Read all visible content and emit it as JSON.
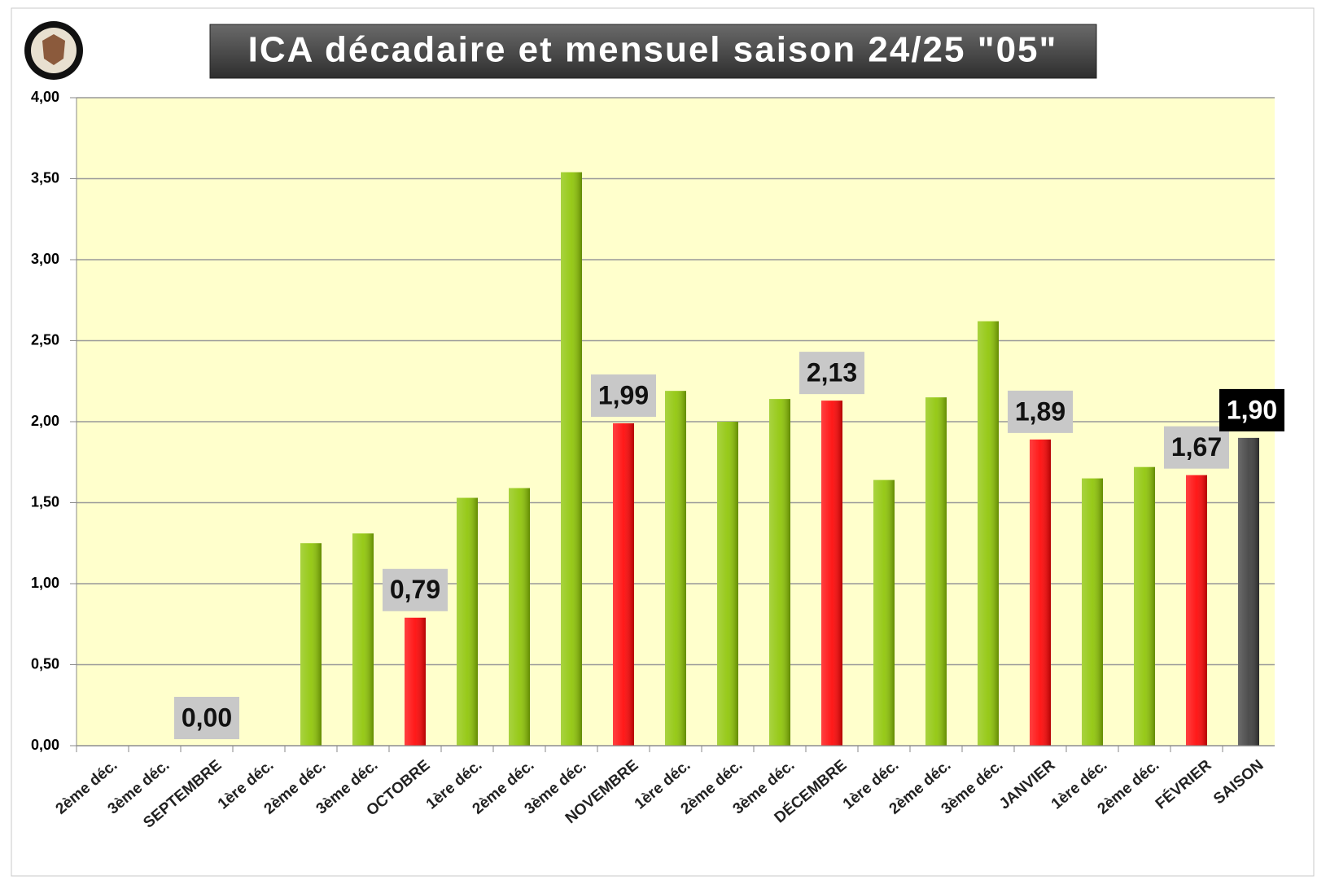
{
  "chart_data": {
    "type": "bar",
    "title": "ICA décadaire et mensuel saison 24/25 \"05\"",
    "categories": [
      "2ème déc.",
      "3ème déc.",
      "SEPTEMBRE",
      "1ère déc.",
      "2ème déc.",
      "3ème déc.",
      "OCTOBRE",
      "1ère déc.",
      "2ème déc.",
      "3ème déc.",
      "NOVEMBRE",
      "1ère déc.",
      "2ème déc.",
      "3ème déc.",
      "DÉCEMBRE",
      "1ère déc.",
      "2ème déc.",
      "3ème déc.",
      "JANVIER",
      "1ère déc.",
      "2ème déc.",
      "FÉVRIER",
      "SAISON"
    ],
    "values": [
      null,
      null,
      0,
      null,
      1.25,
      1.31,
      0.79,
      1.53,
      1.59,
      3.54,
      1.99,
      2.19,
      2.0,
      2.14,
      2.13,
      1.64,
      2.15,
      2.62,
      1.89,
      1.65,
      1.72,
      1.67,
      1.9
    ],
    "value_labels": [
      null,
      null,
      "0,00",
      null,
      null,
      null,
      "0,79",
      null,
      null,
      null,
      "1,99",
      null,
      null,
      null,
      "2,13",
      null,
      null,
      null,
      "1,89",
      null,
      null,
      "1,67",
      "1,90"
    ],
    "colors": [
      "#8cc400",
      "#8cc400",
      "#ff0000",
      "#8cc400",
      "#8cc400",
      "#8cc400",
      "#ff0000",
      "#8cc400",
      "#8cc400",
      "#8cc400",
      "#ff0000",
      "#8cc400",
      "#8cc400",
      "#8cc400",
      "#ff0000",
      "#8cc400",
      "#8cc400",
      "#8cc400",
      "#ff0000",
      "#8cc400",
      "#8cc400",
      "#ff0000",
      "#3a3a3a"
    ],
    "ylim": [
      0,
      4
    ],
    "yticks": [
      {
        "value": 0,
        "label": "0,00"
      },
      {
        "value": 0.5,
        "label": "0,50"
      },
      {
        "value": 1,
        "label": "1,00"
      },
      {
        "value": 1.5,
        "label": "1,50"
      },
      {
        "value": 2,
        "label": "2,00"
      },
      {
        "value": 2.5,
        "label": "2,50"
      },
      {
        "value": 3,
        "label": "3,00"
      },
      {
        "value": 3.5,
        "label": "3,50"
      },
      {
        "value": 4,
        "label": "4,00"
      }
    ],
    "grid": true
  }
}
